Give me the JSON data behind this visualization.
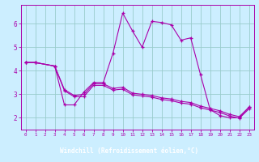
{
  "background_color": "#cceeff",
  "plot_bg_color": "#cceeff",
  "line_color": "#aa00aa",
  "grid_color": "#99cccc",
  "xlabel": "Windchill (Refroidissement éolien,°C)",
  "xlabel_bg": "#660066",
  "xlabel_fg": "#ffffff",
  "xlim": [
    -0.5,
    23.5
  ],
  "ylim": [
    1.5,
    6.8
  ],
  "yticks": [
    2,
    3,
    4,
    5,
    6
  ],
  "xticks": [
    0,
    1,
    2,
    3,
    4,
    5,
    6,
    7,
    8,
    9,
    10,
    11,
    12,
    13,
    14,
    15,
    16,
    17,
    18,
    19,
    20,
    21,
    22,
    23
  ],
  "line1_x": [
    0,
    1,
    3,
    4,
    5,
    6,
    7,
    8,
    9,
    10,
    11,
    12,
    13,
    14,
    15,
    16,
    17,
    18,
    19,
    20,
    21,
    22,
    23
  ],
  "line1_y": [
    4.35,
    4.35,
    4.2,
    2.55,
    2.55,
    3.1,
    3.5,
    3.5,
    4.75,
    6.45,
    5.7,
    5.0,
    6.1,
    6.05,
    5.95,
    5.3,
    5.4,
    3.85,
    2.35,
    2.1,
    2.0,
    2.0,
    2.45
  ],
  "line2_x": [
    0,
    1,
    3,
    4,
    5,
    6,
    7,
    8,
    9,
    10,
    11,
    12,
    13,
    14,
    15,
    16,
    17,
    18,
    19,
    20,
    21,
    22,
    23
  ],
  "line2_y": [
    4.35,
    4.35,
    4.2,
    3.2,
    2.95,
    3.0,
    3.45,
    3.45,
    3.25,
    3.3,
    3.05,
    3.0,
    2.95,
    2.85,
    2.8,
    2.7,
    2.65,
    2.5,
    2.4,
    2.3,
    2.15,
    2.05,
    2.45
  ],
  "line3_x": [
    0,
    1,
    3,
    4,
    5,
    6,
    7,
    8,
    9,
    10,
    11,
    12,
    13,
    14,
    15,
    16,
    17,
    18,
    19,
    20,
    21,
    22,
    23
  ],
  "line3_y": [
    4.35,
    4.35,
    4.2,
    3.15,
    2.9,
    2.9,
    3.38,
    3.38,
    3.18,
    3.22,
    2.98,
    2.93,
    2.88,
    2.78,
    2.73,
    2.63,
    2.58,
    2.43,
    2.33,
    2.23,
    2.08,
    1.98,
    2.38
  ]
}
